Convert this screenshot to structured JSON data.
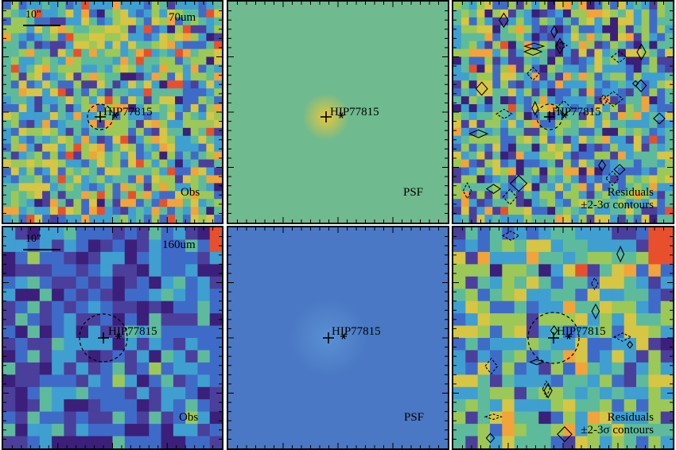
{
  "figure": {
    "rows": [
      {
        "band_label": "70um",
        "scale_label": "10\"",
        "panels": [
          {
            "kind": "obs",
            "caption": "Obs",
            "target": "HIP77815"
          },
          {
            "kind": "psf",
            "caption": "PSF",
            "target": "HIP77815",
            "axis_ticks": [
              "30",
              "20",
              "10"
            ]
          },
          {
            "kind": "residual",
            "caption_line1": "Residuals",
            "caption_line2": "±2-3σ contours",
            "target": "HIP77815"
          }
        ]
      },
      {
        "band_label": "160um",
        "scale_label": "10\"",
        "panels": [
          {
            "kind": "obs",
            "caption": "Obs",
            "target": "HIP77815",
            "axis_ticks": [
              "20",
              "15",
              "10",
              "5"
            ]
          },
          {
            "kind": "psf",
            "caption": "PSF",
            "target": "HIP77815",
            "axis_ticks": [
              "20",
              "15",
              "10",
              "5"
            ]
          },
          {
            "kind": "residual",
            "caption_line1": "Residuals",
            "caption_line2": "±2-3σ contours",
            "target": "HIP77815"
          }
        ]
      }
    ],
    "colors": {
      "frame": "#000000",
      "psf70_bg": "#6fba8f",
      "psf160_bg": "#4a78c4",
      "colormap": [
        "#3b1f7a",
        "#4b3f9c",
        "#3f6bc8",
        "#3f9fd0",
        "#5dbb9c",
        "#9cc857",
        "#d7c544",
        "#f2a33a",
        "#e8502d"
      ]
    }
  }
}
